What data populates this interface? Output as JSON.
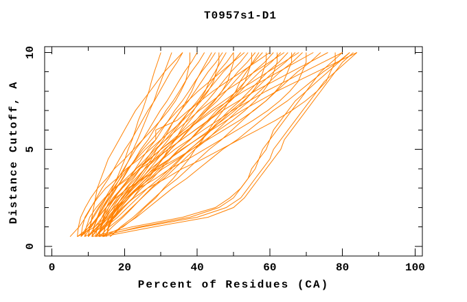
{
  "chart_data": {
    "type": "line",
    "title": "T0957s1-D1",
    "xlabel": "Percent of Residues (CA)",
    "ylabel": "Distance Cutoff, A",
    "xlim": [
      -2,
      102
    ],
    "ylim": [
      -0.5,
      10.3
    ],
    "x_major_ticks": [
      0,
      20,
      40,
      60,
      80,
      100
    ],
    "x_minor_ticks": [
      10,
      30,
      50,
      70,
      90
    ],
    "y_major_ticks": [
      0,
      5,
      10
    ],
    "y_minor_ticks": [
      1,
      2,
      3,
      4,
      6,
      7,
      8,
      9
    ],
    "grid": false,
    "legend": false,
    "line_color": "#ff8000",
    "axis_color": "#000000",
    "background": "#ffffff",
    "cutoffs": [
      0.5,
      1,
      1.5,
      2,
      2.5,
      3,
      3.5,
      4,
      4.5,
      5,
      5.5,
      6,
      6.5,
      7,
      7.5,
      8,
      8.5,
      9,
      9.5,
      10
    ],
    "series": [
      [
        8,
        10.9,
        12.6,
        13.9,
        15.5,
        16.6,
        17.9,
        19,
        20.1,
        21,
        22.1,
        23,
        23.8,
        24.9,
        25.8,
        26.7,
        27.4,
        28.2,
        29.1,
        30
      ],
      [
        7,
        10.4,
        12.5,
        14,
        15.8,
        17.2,
        18.7,
        20,
        21.3,
        22.4,
        23.6,
        24.7,
        25.8,
        26.9,
        28.1,
        29,
        30,
        31,
        32,
        33
      ],
      [
        5,
        7.5,
        9.3,
        10.8,
        12.3,
        13.8,
        15.6,
        17.1,
        18.6,
        20.1,
        21.9,
        23.4,
        24.9,
        26.4,
        28.2,
        29.7,
        31.2,
        32.7,
        34.5,
        36
      ],
      [
        10,
        10.5,
        11,
        11.5,
        12,
        12.5,
        13.5,
        14.5,
        15.5,
        17,
        18.5,
        20,
        21.5,
        23,
        25,
        27,
        29,
        31,
        33.5,
        36
      ],
      [
        7,
        7.3,
        7.9,
        9.2,
        10.7,
        12.6,
        15.1,
        17.2,
        20,
        22.5,
        25,
        27.5,
        29.9,
        32.1,
        34,
        35.5,
        36.8,
        37.4,
        38,
        38
      ],
      [
        8,
        9.6,
        11.5,
        13.1,
        14.7,
        16.3,
        18.2,
        19.8,
        21.4,
        23,
        25,
        26.6,
        28.2,
        29.8,
        31.7,
        33.3,
        34.9,
        36.5,
        38.4,
        40
      ],
      [
        9,
        10.7,
        12.6,
        14.3,
        15.9,
        17.6,
        19.6,
        21.2,
        22.9,
        24.5,
        26.5,
        28.1,
        29.8,
        31.4,
        33.4,
        35.1,
        36.7,
        38.4,
        40.4,
        42
      ],
      [
        7,
        11.8,
        14.8,
        17,
        19.6,
        21.4,
        23.7,
        25.5,
        27.4,
        28.8,
        30.7,
        32.2,
        33.6,
        35.5,
        37,
        38.5,
        39.6,
        41,
        42.5,
        44
      ],
      [
        10,
        11.8,
        13.9,
        15.6,
        17.4,
        19.1,
        21.2,
        23,
        24.7,
        26.5,
        28.6,
        30.3,
        32.1,
        33.8,
        35.9,
        37.7,
        39.4,
        41.2,
        43.3,
        45
      ],
      [
        8,
        8.4,
        9.1,
        10.7,
        12.6,
        14.8,
        17.9,
        20.5,
        24,
        27,
        30,
        33.1,
        36.1,
        38.8,
        41.1,
        43,
        44.5,
        45.2,
        46,
        46
      ],
      [
        11,
        12.8,
        15,
        16.8,
        18.6,
        20.4,
        22.5,
        24.3,
        26.1,
        27.9,
        30.1,
        31.9,
        33.7,
        35.5,
        37.6,
        39.4,
        41.2,
        43,
        45.2,
        47
      ],
      [
        9,
        14.1,
        17.2,
        19.5,
        22.3,
        24.2,
        26.6,
        28.5,
        30.5,
        32,
        34,
        35.5,
        37.1,
        39,
        40.6,
        42.2,
        43.3,
        44.9,
        46.4,
        48
      ],
      [
        12,
        13.9,
        16.2,
        18.1,
        20,
        21.9,
        24.2,
        26.1,
        28,
        29.9,
        32.1,
        34,
        36,
        37.8,
        40.1,
        42,
        44,
        45.8,
        48.1,
        50
      ],
      [
        10,
        10.4,
        11.2,
        12.8,
        14.8,
        17.2,
        20.4,
        23.2,
        26.8,
        30,
        33.2,
        36.4,
        39.6,
        42.4,
        44.8,
        46.8,
        48.4,
        49.2,
        50,
        50
      ],
      [
        8,
        10.2,
        12.8,
        15,
        17.2,
        19.4,
        22.1,
        24.3,
        26.5,
        28.7,
        31.3,
        33.5,
        35.7,
        37.9,
        40.6,
        42.8,
        45,
        47.2,
        49.8,
        52
      ],
      [
        13,
        13.4,
        14.2,
        15,
        16.2,
        17.8,
        19.4,
        21,
        23,
        25,
        27.4,
        29.8,
        32.2,
        34.6,
        37.4,
        40.2,
        43.4,
        46.6,
        49.8,
        53
      ],
      [
        11,
        13.2,
        15.7,
        17.9,
        20,
        22.2,
        24.8,
        26.9,
        29.1,
        31.2,
        33.8,
        35.9,
        38.1,
        40.2,
        42.8,
        45,
        47.1,
        49.3,
        51.9,
        54
      ],
      [
        9,
        9.5,
        10.4,
        12.2,
        14.5,
        17.3,
        21,
        24.2,
        28.3,
        32,
        35.7,
        39.4,
        43,
        46.3,
        49,
        51.3,
        53.2,
        54.1,
        55,
        55
      ],
      [
        12,
        14.2,
        16.8,
        19,
        21.2,
        23.4,
        26.1,
        28.3,
        30.5,
        32.7,
        35.3,
        37.5,
        39.7,
        41.9,
        44.6,
        46.8,
        49,
        51.2,
        53.8,
        56
      ],
      [
        14,
        19.6,
        23,
        25.6,
        28.6,
        30.8,
        33.4,
        35.5,
        37.7,
        39.4,
        41.5,
        43.2,
        45,
        47.1,
        48.8,
        50.6,
        51.8,
        53.6,
        55.3,
        57
      ],
      [
        10,
        12.4,
        15.3,
        17.7,
        20.1,
        22.5,
        25.4,
        27.8,
        30.2,
        32.6,
        35.4,
        37.8,
        40.2,
        42.6,
        45.5,
        47.9,
        50.3,
        52.7,
        55.6,
        58
      ],
      [
        13,
        13.5,
        14.4,
        16.2,
        18.5,
        21.3,
        25,
        28.2,
        32.3,
        36,
        39.7,
        43.4,
        47,
        50.3,
        53,
        55.3,
        57.2,
        58.1,
        59,
        59
      ],
      [
        11,
        11.5,
        12.5,
        13.5,
        14.9,
        16.9,
        18.8,
        20.8,
        23.3,
        25.7,
        28.6,
        28.6,
        34.5,
        37.5,
        40.9,
        44.3,
        48.2,
        52.2,
        56.1,
        60
      ],
      [
        12,
        14.5,
        17.4,
        19.8,
        22.3,
        24.7,
        27.7,
        30.1,
        32.6,
        35,
        38,
        40.4,
        42.9,
        45.3,
        48.3,
        50.7,
        53.2,
        55.6,
        58.6,
        61
      ],
      [
        15,
        15.5,
        16.4,
        18.3,
        20.6,
        23.5,
        27.2,
        30.5,
        34.7,
        38.5,
        42.3,
        46,
        49.8,
        53.1,
        55.9,
        58.2,
        60.1,
        61.1,
        62,
        62
      ],
      [
        10,
        12.7,
        15.8,
        18.5,
        21.1,
        23.8,
        27,
        29.6,
        32.3,
        34.9,
        38.1,
        40.7,
        43.4,
        46,
        49.2,
        51.9,
        54.5,
        57.2,
        60.4,
        63
      ],
      [
        13,
        13.5,
        14.5,
        15.6,
        17.1,
        19.1,
        21.2,
        23.2,
        25.8,
        28.3,
        31.4,
        34.4,
        37.5,
        40.5,
        44.1,
        47.7,
        51.8,
        55.8,
        59.9,
        64
      ],
      [
        14,
        16.6,
        19.6,
        22.2,
        24.7,
        27.3,
        30.3,
        32.9,
        35.4,
        38,
        41,
        43.6,
        46.1,
        48.7,
        51.7,
        54.3,
        56.8,
        59.4,
        62.5,
        65
      ],
      [
        11,
        11.6,
        12.7,
        14.9,
        17.6,
        20.9,
        25.3,
        29.2,
        34.1,
        38.5,
        42.9,
        47.3,
        51.7,
        55.6,
        58.9,
        61.6,
        63.8,
        64.9,
        66,
        66
      ],
      [
        12,
        14.8,
        18.1,
        20.8,
        23.6,
        26.3,
        29.6,
        32.4,
        35.1,
        37.9,
        41.2,
        43.9,
        46.7,
        49.4,
        52.7,
        55.5,
        58.2,
        61,
        64.3,
        67
      ],
      [
        15,
        15.5,
        16.6,
        17.7,
        19.2,
        21.4,
        23.5,
        25.6,
        28.3,
        30.9,
        34.1,
        37.3,
        40.4,
        43.6,
        47.3,
        51,
        55.3,
        59.5,
        63.8,
        68
      ],
      [
        13,
        15.8,
        19.2,
        22,
        24.8,
        27.6,
        30.9,
        33.7,
        36.5,
        39.3,
        42.7,
        45.5,
        48.3,
        51.1,
        54.4,
        57.2,
        60,
        62.8,
        66.2,
        69
      ],
      [
        14,
        14.6,
        15.7,
        17.9,
        20.7,
        24.1,
        28.6,
        32.5,
        37.5,
        42,
        46.5,
        51,
        55.4,
        59.4,
        62.7,
        65.5,
        67.8,
        68.9,
        70,
        70
      ],
      [
        12,
        12.6,
        13.8,
        15,
        16.8,
        19.2,
        21.6,
        24,
        27,
        30,
        33.6,
        37.2,
        40.8,
        44.4,
        48.6,
        52.8,
        57.6,
        62.4,
        67.2,
        72
      ],
      [
        16,
        18.9,
        22.4,
        25.3,
        28.2,
        31.1,
        34.6,
        37.5,
        40.4,
        43.3,
        46.7,
        49.6,
        52.5,
        55.4,
        58.9,
        61.8,
        64.7,
        67.6,
        71.1,
        74
      ],
      [
        13,
        13.6,
        14.9,
        16.2,
        18,
        20.6,
        23.1,
        25.6,
        28.8,
        31.9,
        35.7,
        39.5,
        43.2,
        47,
        51.4,
        55.8,
        60.9,
        65.9,
        71,
        76
      ],
      [
        15,
        15.6,
        16.9,
        19.4,
        22.6,
        26.3,
        31.4,
        35.8,
        41.5,
        46.5,
        51.5,
        56.6,
        61.6,
        66,
        69.8,
        73,
        75.5,
        76.7,
        78,
        78
      ],
      [
        14,
        14.7,
        16,
        17.3,
        19.3,
        21.9,
        24.6,
        27.2,
        30.5,
        33.8,
        37.8,
        41.7,
        45.7,
        49.6,
        54.3,
        58.9,
        64.2,
        69.4,
        74.7,
        80
      ],
      [
        16,
        19.3,
        23.3,
        26.6,
        29.9,
        33.2,
        37.1,
        40.4,
        43.7,
        47,
        51,
        54.3,
        57.6,
        60.9,
        64.8,
        68.1,
        71.4,
        74.7,
        78.7,
        82
      ],
      [
        15,
        15.7,
        17.1,
        18.5,
        20.5,
        23.3,
        26,
        28.8,
        32.3,
        35.7,
        39.8,
        44,
        48.1,
        52.3,
        57.1,
        61.9,
        67.4,
        72.9,
        78.5,
        84
      ],
      [
        12,
        25,
        40,
        48,
        52,
        54,
        56,
        58,
        60,
        61,
        63,
        65,
        67,
        69,
        71,
        73,
        75,
        78,
        81,
        84
      ],
      [
        14,
        28,
        43,
        50,
        53,
        55,
        57,
        59,
        61,
        63,
        64,
        66,
        68,
        70,
        72,
        74,
        76,
        78,
        80,
        83
      ],
      [
        11,
        22,
        36,
        45,
        49,
        52,
        54,
        56,
        57,
        59,
        60,
        62,
        64,
        66,
        68,
        70,
        73,
        76,
        79,
        82
      ],
      [
        13,
        24,
        38,
        46,
        50,
        52,
        54,
        55,
        57,
        58,
        60,
        61,
        63,
        65,
        67,
        70,
        72,
        74,
        77,
        80
      ]
    ]
  }
}
